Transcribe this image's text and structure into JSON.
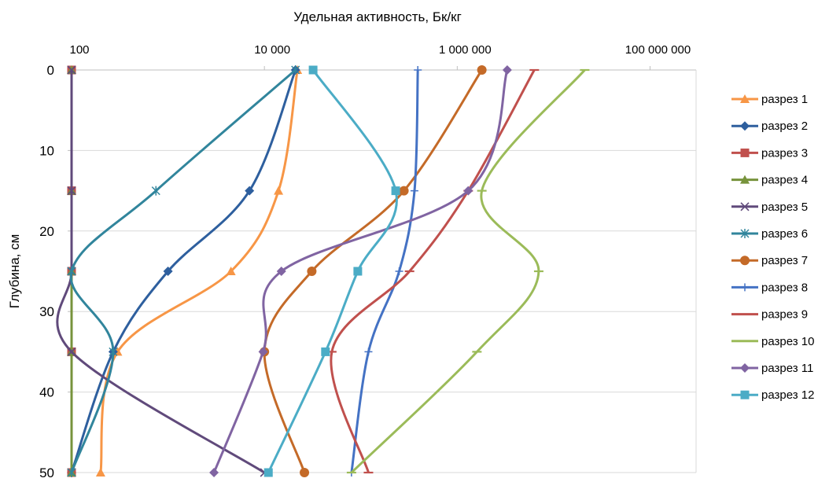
{
  "chart_data": {
    "type": "line",
    "title": "",
    "xlabel": "Удельная активность, Бк/кг",
    "ylabel": "Глубина, см",
    "x_scale": "log",
    "x_axis_position": "top",
    "y_inverted": true,
    "xlim": [
      100,
      300000000
    ],
    "ylim": [
      0,
      50
    ],
    "x_ticks": [
      100,
      10000,
      1000000,
      100000000
    ],
    "x_tick_labels": [
      "100",
      "10 000",
      "1 000 000",
      "100 000 000"
    ],
    "y_ticks": [
      0,
      10,
      20,
      30,
      40,
      50
    ],
    "y_tick_labels": [
      "0",
      "10",
      "20",
      "30",
      "40",
      "50"
    ],
    "grid": "horizontal",
    "legend_position": "right",
    "depths": [
      0,
      15,
      25,
      35,
      50
    ],
    "series": [
      {
        "name": "разрез 1",
        "color": "#F79646",
        "marker": "triangle",
        "values": [
          22000,
          14000,
          4500,
          300,
          200
        ]
      },
      {
        "name": "разрез 2",
        "color": "#2E5F9E",
        "marker": "diamond",
        "values": [
          21000,
          7000,
          1000,
          270,
          100
        ]
      },
      {
        "name": "разрез 3",
        "color": "#C0504D",
        "marker": "square",
        "values": [
          100,
          100,
          100,
          100,
          100
        ]
      },
      {
        "name": "разрез 4",
        "color": "#77933C",
        "marker": "triangle",
        "values": [
          100,
          100,
          100,
          100,
          100
        ]
      },
      {
        "name": "разрез 5",
        "color": "#604A7B",
        "marker": "x",
        "values": [
          100,
          100,
          100,
          100,
          10000
        ]
      },
      {
        "name": "разрез 6",
        "color": "#31859C",
        "marker": "star",
        "values": [
          21000,
          750,
          100,
          270,
          100
        ]
      },
      {
        "name": "разрез 7",
        "color": "#C46A28",
        "marker": "circle",
        "values": [
          1800000,
          280000,
          31000,
          10000,
          26000
        ]
      },
      {
        "name": "разрез 8",
        "color": "#4472C4",
        "marker": "plus",
        "values": [
          390000,
          360000,
          250000,
          120000,
          80000
        ]
      },
      {
        "name": "разрез 9",
        "color": "#C0504D",
        "marker": "dash",
        "values": [
          6300000,
          1300000,
          320000,
          50000,
          120000
        ]
      },
      {
        "name": "разрез 10",
        "color": "#9BBB59",
        "marker": "dash",
        "values": [
          21000000,
          1800000,
          7000000,
          1600000,
          80000
        ]
      },
      {
        "name": "разрез 11",
        "color": "#8064A2",
        "marker": "diamond",
        "values": [
          3300000,
          1300000,
          15000,
          9700,
          3000
        ]
      },
      {
        "name": "разрез 12",
        "color": "#4BACC6",
        "marker": "square",
        "values": [
          32000,
          230000,
          93000,
          43000,
          11000
        ]
      }
    ]
  }
}
